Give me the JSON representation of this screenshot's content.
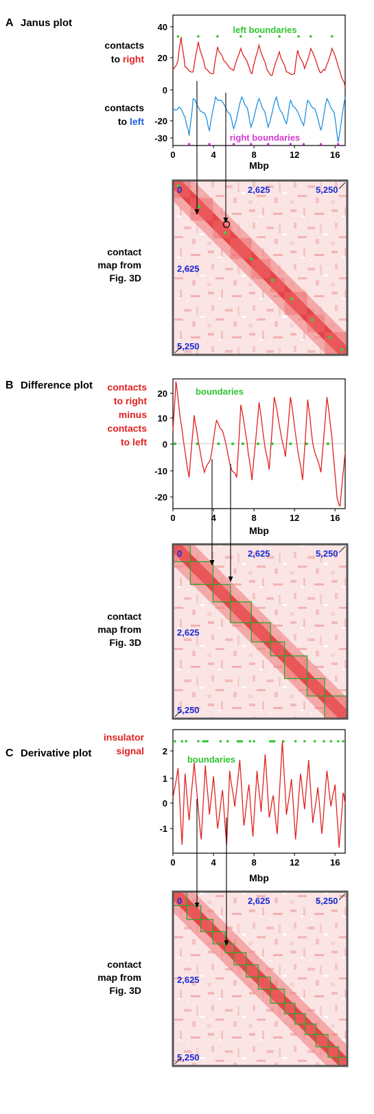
{
  "panels": [
    {
      "letter": "A",
      "title": "Janus plot",
      "labels": [
        {
          "lines": [
            {
              "segments": [
                {
                  "text": "contacts",
                  "color": "#000000"
                }
              ]
            },
            {
              "segments": [
                {
                  "text": "to ",
                  "color": "#000000"
                },
                {
                  "text": "right",
                  "color": "#e0201f"
                }
              ]
            }
          ]
        },
        {
          "lines": [
            {
              "segments": [
                {
                  "text": "contacts",
                  "color": "#000000"
                }
              ]
            },
            {
              "segments": [
                {
                  "text": "to ",
                  "color": "#000000"
                },
                {
                  "text": "left",
                  "color": "#1f5fe0"
                }
              ]
            }
          ]
        }
      ],
      "annotations": [
        {
          "text": "left boundaries",
          "color": "#2ec42e"
        },
        {
          "text": "right boundaries",
          "color": "#d13cd1"
        }
      ],
      "map_label": [
        "contact",
        "map from",
        "Fig. 3D"
      ]
    },
    {
      "letter": "B",
      "title": "Difference plot",
      "labels": [
        {
          "lines": [
            {
              "segments": [
                {
                  "text": "contacts",
                  "color": "#e0201f"
                }
              ]
            },
            {
              "segments": [
                {
                  "text": "to right",
                  "color": "#e0201f"
                }
              ]
            },
            {
              "segments": [
                {
                  "text": "minus",
                  "color": "#e0201f"
                }
              ]
            },
            {
              "segments": [
                {
                  "text": "contacts",
                  "color": "#e0201f"
                }
              ]
            },
            {
              "segments": [
                {
                  "text": "to left",
                  "color": "#e0201f"
                }
              ]
            }
          ]
        }
      ],
      "annotations": [
        {
          "text": "boundaries",
          "color": "#2ec42e"
        }
      ],
      "map_label": [
        "contact",
        "map from",
        "Fig. 3D"
      ]
    },
    {
      "letter": "C",
      "title": "Derivative plot",
      "labels": [
        {
          "lines": [
            {
              "segments": [
                {
                  "text": "insulator",
                  "color": "#e0201f"
                }
              ]
            },
            {
              "segments": [
                {
                  "text": "signal",
                  "color": "#e0201f"
                }
              ]
            }
          ]
        }
      ],
      "annotations": [
        {
          "text": "boundaries",
          "color": "#2ec42e"
        }
      ],
      "map_label": [
        "contact",
        "map from",
        "Fig. 3D"
      ]
    }
  ],
  "chart_data": [
    {
      "type": "line",
      "title": "Janus plot",
      "xlabel": "Mbp",
      "ylabel": "",
      "xlim": [
        0,
        17
      ],
      "ylim": [
        -33,
        45
      ],
      "xticks": [
        "0",
        "4",
        "8",
        "12",
        "16"
      ],
      "yticks": [
        "40",
        "20",
        "0",
        "-20",
        "-30"
      ],
      "colors": {
        "right": "#e0201f",
        "left": "#1f8fe0",
        "left_boundaries": "#2ec42e",
        "right_boundaries": "#d13cd1"
      },
      "series": [
        {
          "name": "contacts to right",
          "x": [
            0,
            0.5,
            0.8,
            1.2,
            2.0,
            2.5,
            3.2,
            4.0,
            4.4,
            5.0,
            6.0,
            6.7,
            7.5,
            7.8,
            8.5,
            9.3,
            9.8,
            10.5,
            11.2,
            12.0,
            12.3,
            13.0,
            13.6,
            14.5,
            15.0,
            15.7,
            16.5,
            17.0
          ],
          "y": [
            12,
            18,
            32,
            14,
            11,
            29,
            13,
            10,
            26,
            18,
            12,
            25,
            14,
            10,
            27,
            12,
            9,
            23,
            11,
            10,
            24,
            13,
            25,
            11,
            12,
            25,
            11,
            2
          ]
        },
        {
          "name": "contacts to left",
          "x": [
            0,
            0.6,
            1.2,
            1.6,
            2.0,
            2.5,
            3.3,
            3.6,
            4.2,
            5.0,
            5.6,
            6.0,
            6.8,
            7.3,
            7.7,
            8.5,
            9.0,
            9.4,
            10.2,
            10.6,
            11.2,
            11.6,
            12.0,
            12.9,
            13.3,
            14.0,
            14.6,
            15.2,
            15.9,
            16.3,
            17.0
          ],
          "y": [
            -12,
            -10,
            -16,
            -27,
            -5,
            -10,
            -16,
            -24,
            -4,
            -8,
            -14,
            -23,
            -4,
            -10,
            -22,
            -5,
            -12,
            -22,
            -4,
            -12,
            -20,
            -6,
            -10,
            -21,
            -6,
            -11,
            -24,
            -5,
            -13,
            -31,
            -4
          ]
        }
      ],
      "left_boundaries_x": [
        0.5,
        2.5,
        4.4,
        6.7,
        8.6,
        10.5,
        12.4,
        13.6,
        15.7
      ],
      "right_boundaries_x": [
        1.6,
        3.6,
        6.0,
        7.7,
        9.4,
        11.6,
        12.9,
        14.6,
        16.3
      ]
    },
    {
      "type": "line",
      "title": "Difference plot",
      "xlabel": "Mbp",
      "ylabel": "",
      "xlim": [
        0,
        17
      ],
      "ylim": [
        -25,
        25
      ],
      "xticks": [
        "0",
        "4",
        "8",
        "12",
        "16"
      ],
      "yticks": [
        "20",
        "10",
        "0",
        "-10",
        "-20"
      ],
      "colors": {
        "line": "#e0201f",
        "boundaries": "#2ec42e"
      },
      "series": [
        {
          "name": "contacts to right minus contacts to left",
          "x": [
            0,
            0.3,
            0.6,
            1.0,
            1.6,
            2.1,
            2.5,
            3.1,
            3.7,
            4.3,
            4.9,
            5.7,
            6.3,
            6.7,
            7.3,
            7.8,
            8.5,
            9.0,
            9.5,
            10.0,
            10.6,
            11.1,
            11.6,
            12.2,
            12.8,
            13.3,
            13.8,
            14.6,
            15.2,
            15.7,
            16.2,
            16.5,
            17.0
          ],
          "y": [
            5,
            24,
            14,
            2,
            -13,
            11,
            1,
            -11,
            -6,
            9,
            5,
            -9,
            -13,
            15,
            1,
            -14,
            16,
            1,
            -10,
            18,
            5,
            -5,
            18,
            1,
            -14,
            17,
            0,
            -11,
            18,
            2,
            -21,
            -24,
            -3
          ]
        }
      ],
      "boundaries_x": [
        0.2,
        2.4,
        4.5,
        5.9,
        6.9,
        8.4,
        9.8,
        11.6,
        13.2,
        15.3
      ]
    },
    {
      "type": "line",
      "title": "Derivative plot",
      "xlabel": "Mbp",
      "ylabel": "",
      "xlim": [
        0,
        17
      ],
      "ylim": [
        -1.9,
        2.6
      ],
      "xticks": [
        "0",
        "4",
        "8",
        "12",
        "16"
      ],
      "yticks": [
        "2",
        "1",
        "0",
        "-1"
      ],
      "colors": {
        "line": "#e0201f",
        "boundaries": "#2ec42e"
      },
      "series": [
        {
          "name": "insulator signal",
          "x": [
            0,
            0.5,
            0.9,
            1.2,
            1.6,
            2.1,
            2.5,
            2.8,
            3.2,
            3.6,
            4.0,
            4.4,
            4.9,
            5.3,
            5.6,
            6.1,
            6.6,
            7.0,
            7.5,
            7.9,
            8.3,
            8.7,
            9.1,
            9.5,
            9.9,
            10.3,
            10.8,
            11.2,
            11.7,
            12.1,
            12.6,
            13.0,
            13.4,
            13.8,
            14.3,
            14.7,
            15.2,
            15.6,
            16.0,
            16.4,
            16.8,
            17.0
          ],
          "y": [
            0.1,
            1.2,
            -1.6,
            1.0,
            -0.7,
            1.4,
            -0.3,
            -1.4,
            1.3,
            -0.5,
            0.9,
            -1.0,
            0.4,
            -1.6,
            1.1,
            -0.2,
            1.5,
            -0.9,
            0.6,
            -1.3,
            1.1,
            -0.4,
            1.7,
            -0.6,
            0.2,
            -1.2,
            2.2,
            -0.5,
            0.8,
            -1.4,
            1.0,
            -0.3,
            1.5,
            -0.8,
            0.5,
            -1.2,
            1.1,
            -0.2,
            0.6,
            -1.7,
            0.3,
            -0.1
          ]
        }
      ],
      "boundaries_x": [
        0.2,
        0.9,
        1.3,
        2.5,
        3.0,
        3.2,
        3.4,
        4.7,
        5.4,
        6.4,
        6.6,
        6.8,
        7.6,
        8.0,
        9.6,
        9.8,
        10.0,
        10.9,
        12.1,
        13.0,
        14.0,
        14.9,
        15.6,
        16.3,
        16.8
      ]
    }
  ]
}
